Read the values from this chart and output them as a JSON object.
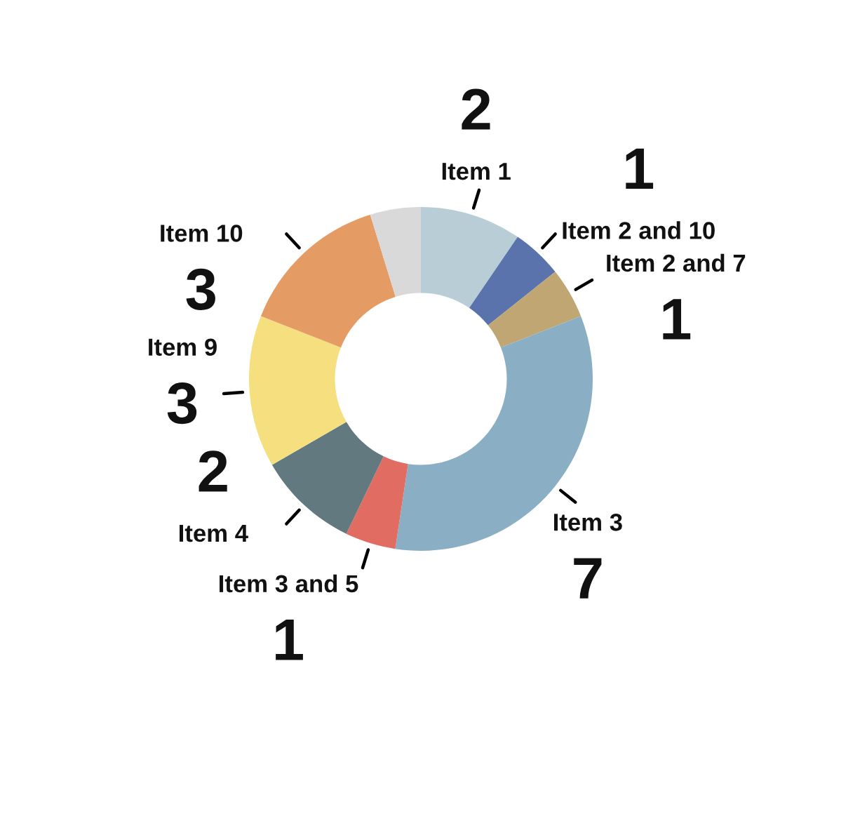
{
  "chart_data": {
    "type": "donut",
    "categories": [
      "Item 1",
      "Item 2 and 10",
      "Item 2 and 7",
      "Item 3",
      "Item 3 and 5",
      "Item 4",
      "Item 9",
      "Item 10",
      null
    ],
    "values": [
      2,
      1,
      1,
      7,
      1,
      2,
      3,
      3,
      1
    ],
    "colors": [
      "#b8cdd6",
      "#5b73ad",
      "#bfa673",
      "#8aafc4",
      "#e06c62",
      "#62797f",
      "#f5df7e",
      "#e49b64",
      "#d9d9d9"
    ],
    "value_labels": [
      "2",
      "1",
      "1",
      "7",
      "1",
      "2",
      "3",
      "3",
      null
    ]
  }
}
